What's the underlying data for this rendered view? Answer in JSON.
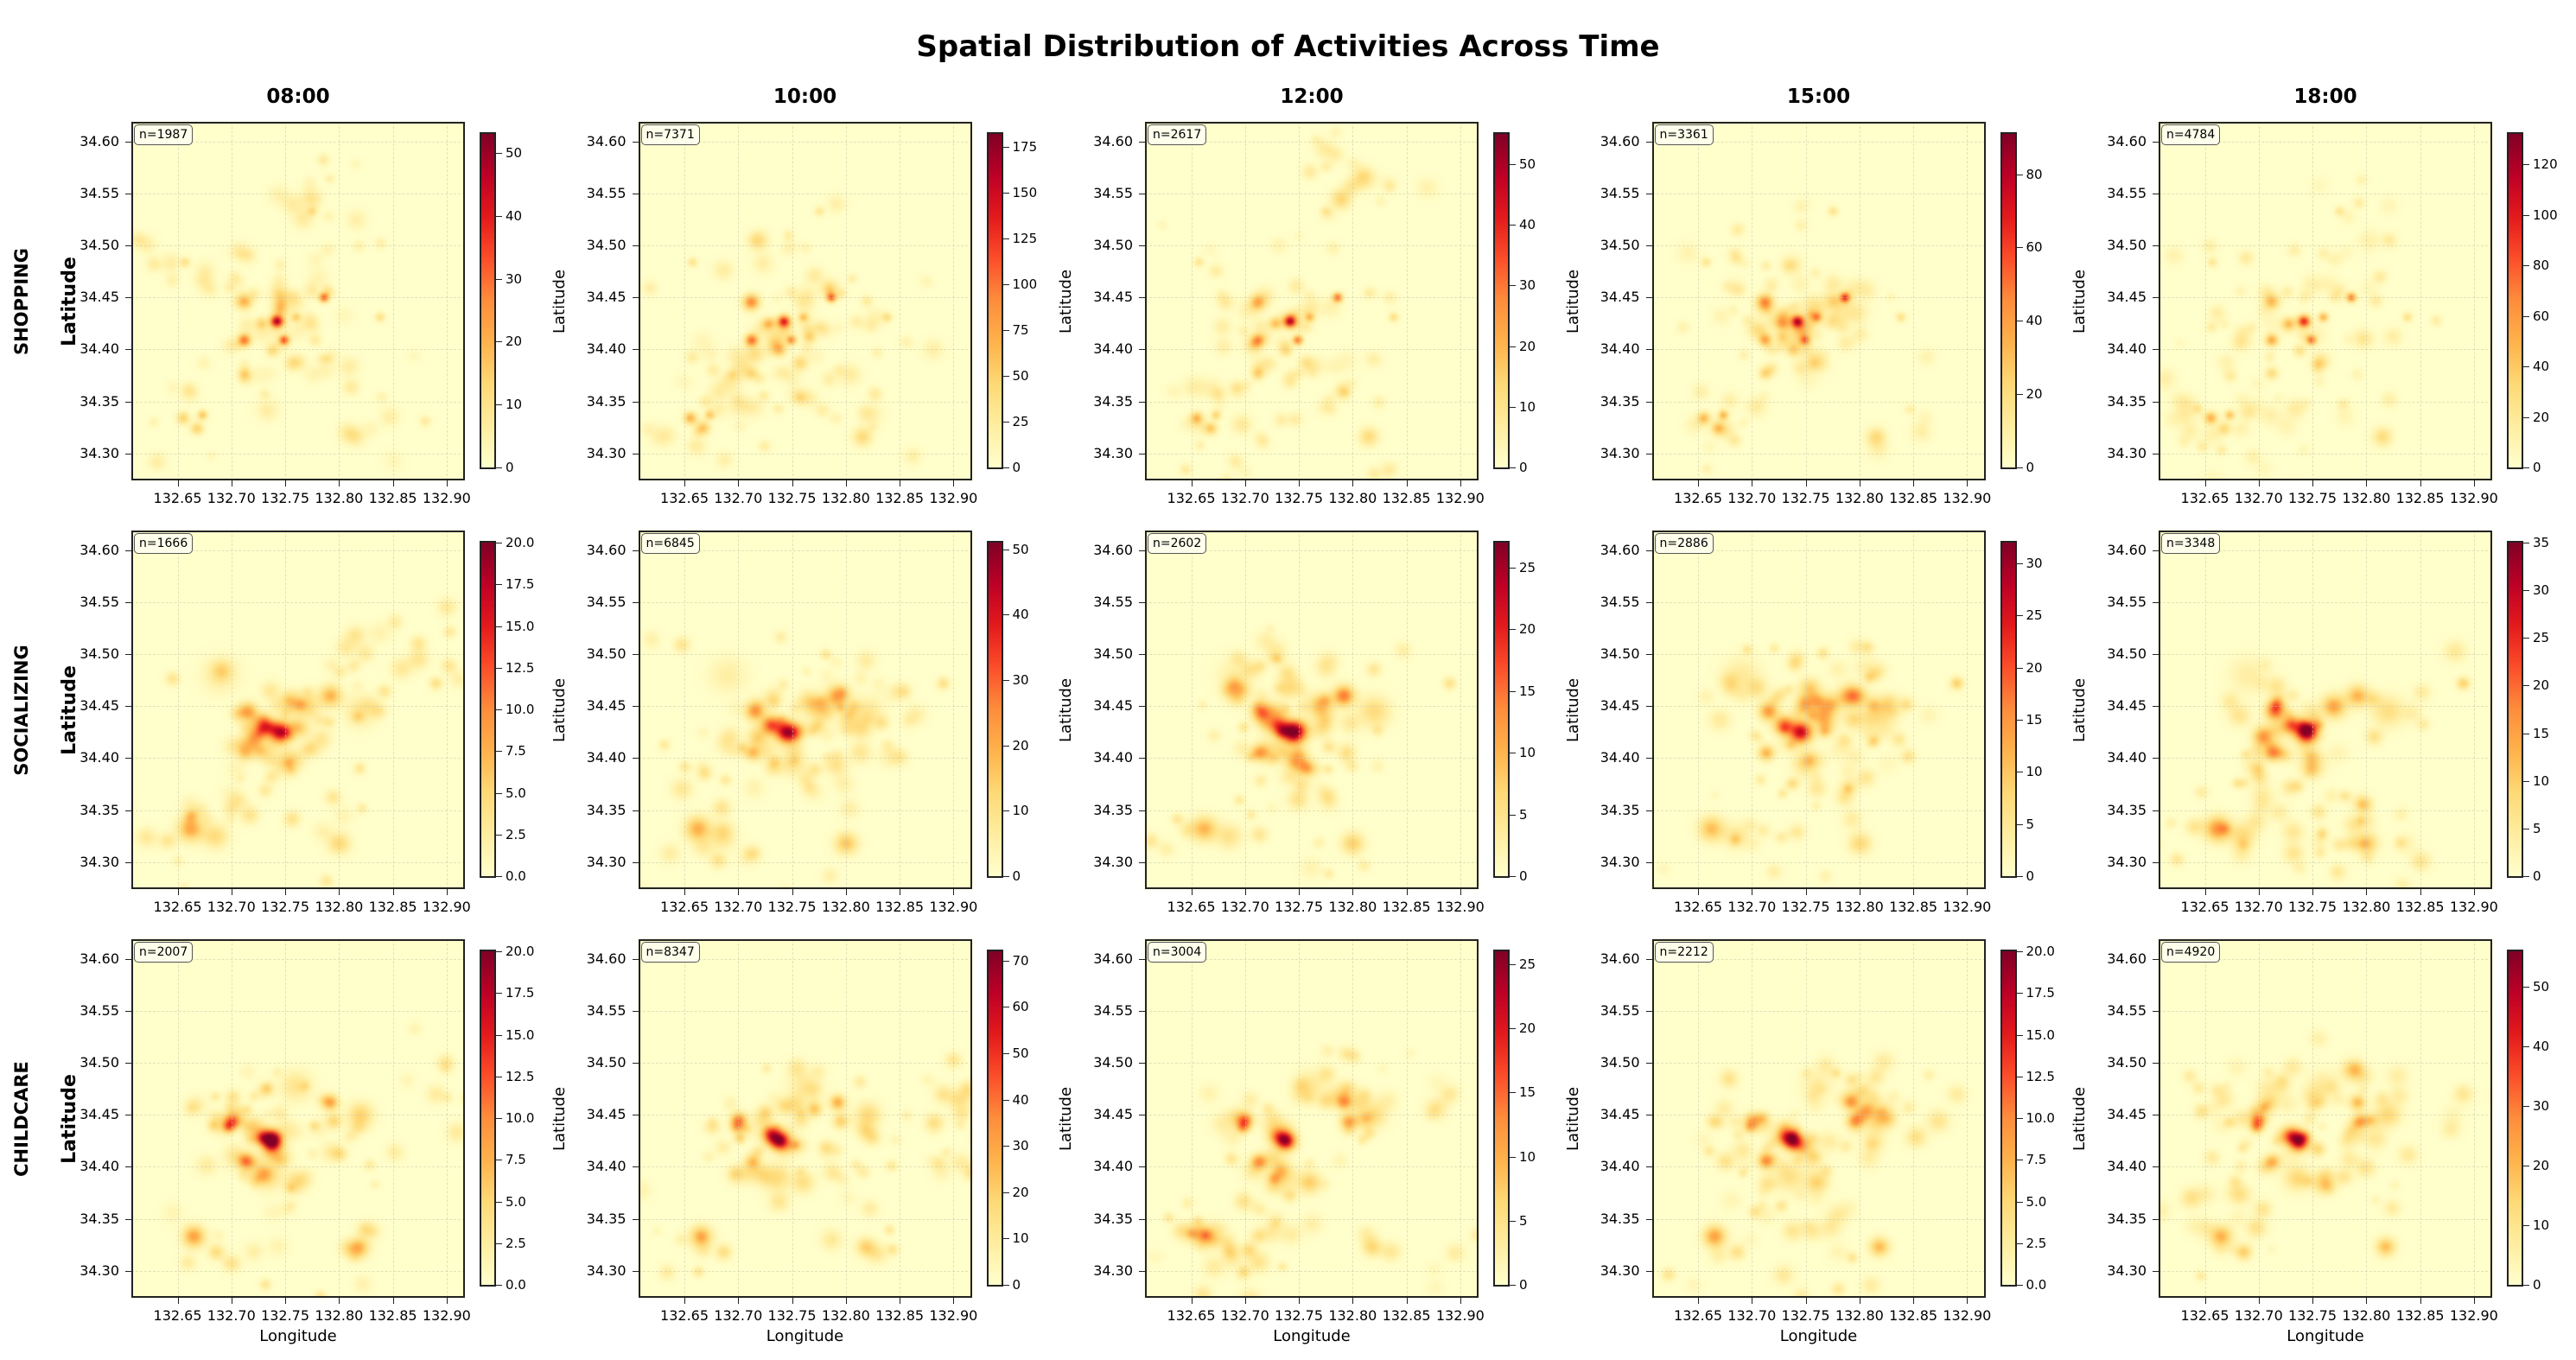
{
  "chart_data": {
    "type": "heatmap",
    "title": "Spatial Distribution of Activities Across Time",
    "xlabel": "Longitude",
    "ylabel": "Latitude",
    "xlim": [
      132.607,
      132.917
    ],
    "ylim": [
      34.274,
      34.619
    ],
    "x_ticks": [
      "132.65",
      "132.70",
      "132.75",
      "132.80",
      "132.85",
      "132.90"
    ],
    "y_ticks": [
      "34.30",
      "34.35",
      "34.40",
      "34.45",
      "34.50",
      "34.55",
      "34.60"
    ],
    "grid": true,
    "colormap": "YlOrRd",
    "colormap_stops": [
      "#ffffcc",
      "#ffeda0",
      "#fed976",
      "#feb24c",
      "#fd8d3c",
      "#fc4e2a",
      "#e31a1c",
      "#bd0026",
      "#800026"
    ],
    "times": [
      "08:00",
      "10:00",
      "12:00",
      "15:00",
      "18:00"
    ],
    "activities": [
      {
        "name": "SHOPPING",
        "panels": [
          {
            "n_label": "n=1987",
            "vmax": 53,
            "cbar_ticks": [
              "0",
              "10",
              "20",
              "30",
              "40",
              "50"
            ]
          },
          {
            "n_label": "n=7371",
            "vmax": 182,
            "cbar_ticks": [
              "0",
              "25",
              "50",
              "75",
              "100",
              "125",
              "150",
              "175"
            ]
          },
          {
            "n_label": "n=2617",
            "vmax": 55,
            "cbar_ticks": [
              "0",
              "10",
              "20",
              "30",
              "40",
              "50"
            ]
          },
          {
            "n_label": "n=3361",
            "vmax": 91,
            "cbar_ticks": [
              "0",
              "20",
              "40",
              "60",
              "80"
            ]
          },
          {
            "n_label": "n=4784",
            "vmax": 132,
            "cbar_ticks": [
              "0",
              "20",
              "40",
              "60",
              "80",
              "100",
              "120"
            ]
          }
        ],
        "hotspots": [
          {
            "lon": 132.742,
            "lat": 34.427,
            "weight": 0.8,
            "spread": 0.004
          },
          {
            "lon": 132.749,
            "lat": 34.409,
            "weight": 0.55,
            "spread": 0.003
          },
          {
            "lon": 132.712,
            "lat": 34.409,
            "weight": 0.5,
            "spread": 0.004
          },
          {
            "lon": 132.712,
            "lat": 34.446,
            "weight": 0.45,
            "spread": 0.005
          },
          {
            "lon": 132.786,
            "lat": 34.45,
            "weight": 0.55,
            "spread": 0.003
          },
          {
            "lon": 132.76,
            "lat": 34.431,
            "weight": 0.35,
            "spread": 0.003
          },
          {
            "lon": 132.728,
            "lat": 34.425,
            "weight": 0.3,
            "spread": 0.004
          },
          {
            "lon": 132.655,
            "lat": 34.334,
            "weight": 0.35,
            "spread": 0.004
          },
          {
            "lon": 132.673,
            "lat": 34.337,
            "weight": 0.35,
            "spread": 0.003
          },
          {
            "lon": 132.668,
            "lat": 34.324,
            "weight": 0.3,
            "spread": 0.004
          },
          {
            "lon": 132.815,
            "lat": 34.316,
            "weight": 0.2,
            "spread": 0.006
          },
          {
            "lon": 132.738,
            "lat": 34.399,
            "weight": 0.2,
            "spread": 0.004
          },
          {
            "lon": 132.712,
            "lat": 34.377,
            "weight": 0.25,
            "spread": 0.004
          },
          {
            "lon": 132.757,
            "lat": 34.387,
            "weight": 0.2,
            "spread": 0.005
          },
          {
            "lon": 132.775,
            "lat": 34.533,
            "weight": 0.18,
            "spread": 0.003
          },
          {
            "lon": 132.838,
            "lat": 34.431,
            "weight": 0.2,
            "spread": 0.003
          },
          {
            "lon": 132.657,
            "lat": 34.484,
            "weight": 0.2,
            "spread": 0.003
          }
        ]
      },
      {
        "name": "SOCIALIZING",
        "panels": [
          {
            "n_label": "n=1666",
            "vmax": 20,
            "cbar_ticks": [
              "0.0",
              "2.5",
              "5.0",
              "7.5",
              "10.0",
              "12.5",
              "15.0",
              "17.5",
              "20.0"
            ]
          },
          {
            "n_label": "n=6845",
            "vmax": 51,
            "cbar_ticks": [
              "0",
              "10",
              "20",
              "30",
              "40",
              "50"
            ]
          },
          {
            "n_label": "n=2602",
            "vmax": 27,
            "cbar_ticks": [
              "0",
              "5",
              "10",
              "15",
              "20",
              "25"
            ]
          },
          {
            "n_label": "n=2886",
            "vmax": 32,
            "cbar_ticks": [
              "0",
              "5",
              "10",
              "15",
              "20",
              "25",
              "30"
            ]
          },
          {
            "n_label": "n=3348",
            "vmax": 35,
            "cbar_ticks": [
              "0",
              "5",
              "10",
              "15",
              "20",
              "25",
              "30",
              "35"
            ]
          }
        ],
        "hotspots": [
          {
            "lon": 132.745,
            "lat": 34.425,
            "weight": 0.9,
            "spread": 0.007
          },
          {
            "lon": 132.73,
            "lat": 34.432,
            "weight": 0.5,
            "spread": 0.006
          },
          {
            "lon": 132.715,
            "lat": 34.445,
            "weight": 0.45,
            "spread": 0.006
          },
          {
            "lon": 132.792,
            "lat": 34.46,
            "weight": 0.4,
            "spread": 0.007
          },
          {
            "lon": 132.77,
            "lat": 34.45,
            "weight": 0.3,
            "spread": 0.008
          },
          {
            "lon": 132.713,
            "lat": 34.405,
            "weight": 0.35,
            "spread": 0.005
          },
          {
            "lon": 132.75,
            "lat": 34.395,
            "weight": 0.25,
            "spread": 0.008
          },
          {
            "lon": 132.662,
            "lat": 34.332,
            "weight": 0.4,
            "spread": 0.008
          },
          {
            "lon": 132.685,
            "lat": 34.325,
            "weight": 0.2,
            "spread": 0.008
          },
          {
            "lon": 132.8,
            "lat": 34.318,
            "weight": 0.3,
            "spread": 0.007
          },
          {
            "lon": 132.89,
            "lat": 34.472,
            "weight": 0.25,
            "spread": 0.004
          },
          {
            "lon": 132.82,
            "lat": 34.445,
            "weight": 0.2,
            "spread": 0.01
          },
          {
            "lon": 132.69,
            "lat": 34.48,
            "weight": 0.12,
            "spread": 0.012
          }
        ]
      },
      {
        "name": "CHILDCARE",
        "panels": [
          {
            "n_label": "n=2007",
            "vmax": 20,
            "cbar_ticks": [
              "0.0",
              "2.5",
              "5.0",
              "7.5",
              "10.0",
              "12.5",
              "15.0",
              "17.5",
              "20.0"
            ]
          },
          {
            "n_label": "n=8347",
            "vmax": 72,
            "cbar_ticks": [
              "0",
              "10",
              "20",
              "30",
              "40",
              "50",
              "60",
              "70"
            ]
          },
          {
            "n_label": "n=3004",
            "vmax": 26,
            "cbar_ticks": [
              "0",
              "5",
              "10",
              "15",
              "20",
              "25"
            ]
          },
          {
            "n_label": "n=2212",
            "vmax": 20,
            "cbar_ticks": [
              "0.0",
              "2.5",
              "5.0",
              "7.5",
              "10.0",
              "12.5",
              "15.0",
              "17.5",
              "20.0"
            ]
          },
          {
            "n_label": "n=4920",
            "vmax": 56,
            "cbar_ticks": [
              "0",
              "10",
              "20",
              "30",
              "40",
              "50"
            ]
          }
        ],
        "hotspots": [
          {
            "lon": 132.738,
            "lat": 34.425,
            "weight": 0.85,
            "spread": 0.006
          },
          {
            "lon": 132.73,
            "lat": 34.43,
            "weight": 0.5,
            "spread": 0.006
          },
          {
            "lon": 132.7,
            "lat": 34.445,
            "weight": 0.45,
            "spread": 0.005
          },
          {
            "lon": 132.698,
            "lat": 34.438,
            "weight": 0.35,
            "spread": 0.004
          },
          {
            "lon": 132.792,
            "lat": 34.462,
            "weight": 0.45,
            "spread": 0.005
          },
          {
            "lon": 132.795,
            "lat": 34.444,
            "weight": 0.3,
            "spread": 0.005
          },
          {
            "lon": 132.713,
            "lat": 34.405,
            "weight": 0.4,
            "spread": 0.005
          },
          {
            "lon": 132.76,
            "lat": 34.385,
            "weight": 0.25,
            "spread": 0.007
          },
          {
            "lon": 132.735,
            "lat": 34.39,
            "weight": 0.2,
            "spread": 0.009
          },
          {
            "lon": 132.665,
            "lat": 34.333,
            "weight": 0.4,
            "spread": 0.007
          },
          {
            "lon": 132.686,
            "lat": 34.318,
            "weight": 0.25,
            "spread": 0.005
          },
          {
            "lon": 132.818,
            "lat": 34.323,
            "weight": 0.3,
            "spread": 0.006
          },
          {
            "lon": 132.82,
            "lat": 34.45,
            "weight": 0.25,
            "spread": 0.008
          },
          {
            "lon": 132.76,
            "lat": 34.478,
            "weight": 0.15,
            "spread": 0.01
          },
          {
            "lon": 132.89,
            "lat": 34.47,
            "weight": 0.15,
            "spread": 0.006
          }
        ]
      }
    ]
  }
}
